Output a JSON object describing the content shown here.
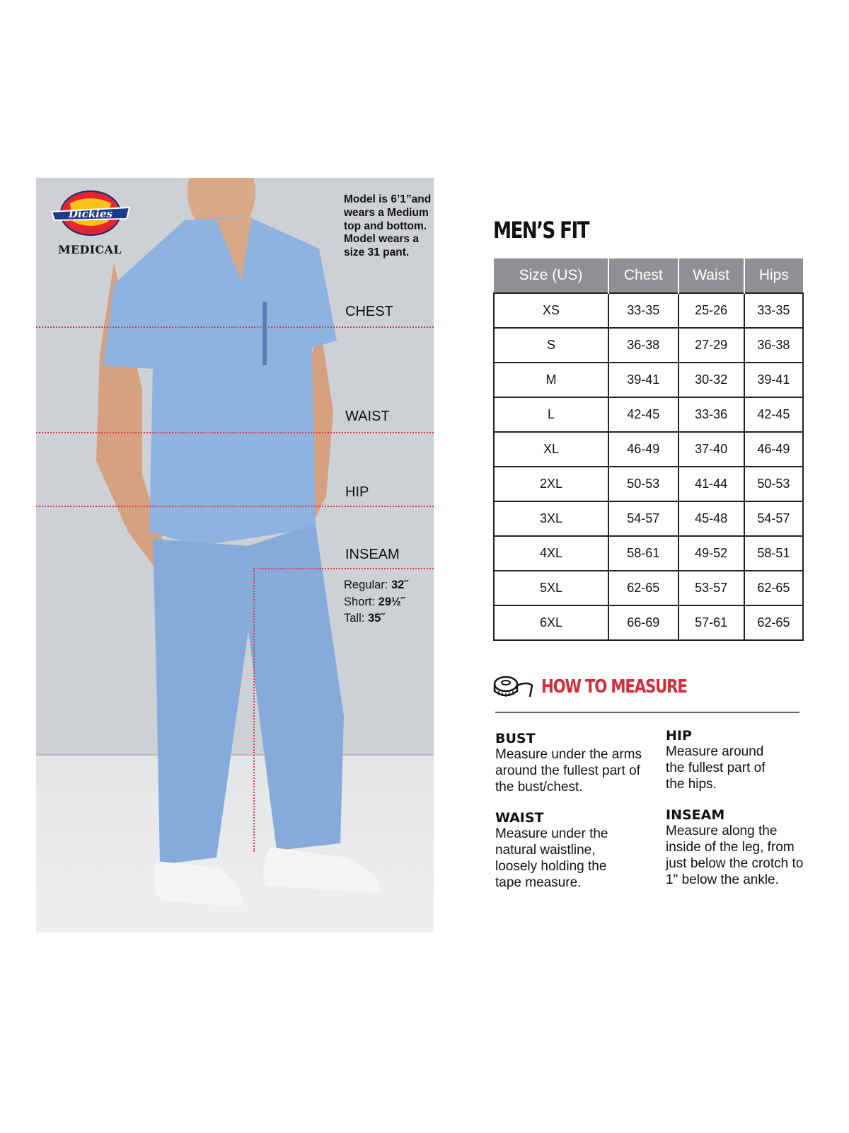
{
  "photo": {
    "brand_logo_text": "Dickies",
    "brand_sub": "MEDICAL",
    "model_note": "Model is 6’1”and wears a Medium top and bottom. Model wears a size 31 pant.",
    "labels": {
      "chest": "CHEST",
      "waist": "WAIST",
      "hip": "HIP",
      "inseam": "INSEAM"
    },
    "inseam_values": [
      {
        "label": "Regular:",
        "value": "32˝"
      },
      {
        "label": "Short:",
        "value": "29½˝"
      },
      {
        "label": "Tall:",
        "value": "35˝"
      }
    ]
  },
  "chart": {
    "title": "MEN’S FIT",
    "headers": [
      "Size (US)",
      "Chest",
      "Waist",
      "Hips"
    ],
    "rows": [
      [
        "XS",
        "33-35",
        "25-26",
        "33-35"
      ],
      [
        "S",
        "36-38",
        "27-29",
        "36-38"
      ],
      [
        "M",
        "39-41",
        "30-32",
        "39-41"
      ],
      [
        "L",
        "42-45",
        "33-36",
        "42-45"
      ],
      [
        "XL",
        "46-49",
        "37-40",
        "46-49"
      ],
      [
        "2XL",
        "50-53",
        "41-44",
        "50-53"
      ],
      [
        "3XL",
        "54-57",
        "45-48",
        "54-57"
      ],
      [
        "4XL",
        "58-61",
        "49-52",
        "58-51"
      ],
      [
        "5XL",
        "62-65",
        "53-57",
        "62-65"
      ],
      [
        "6XL",
        "66-69",
        "57-61",
        "62-65"
      ]
    ]
  },
  "how_to_measure": {
    "icon": "tape-measure-icon",
    "title": "HOW TO MEASURE",
    "items": [
      {
        "heading": "BUST",
        "text": "Measure under the arms around the fullest part of the bust/chest."
      },
      {
        "heading": "HIP",
        "text": "Measure around the fullest part of the hips."
      },
      {
        "heading": "WAIST",
        "text": "Measure under the natural waistline, loosely holding the tape measure."
      },
      {
        "heading": "INSEAM",
        "text": "Measure along the inside of the leg, from just below the crotch to 1\" below the ankle."
      }
    ]
  },
  "colors": {
    "accent_red": "#d52b3a",
    "header_gray": "#8e9094",
    "scrub_blue": "#8fb3e0"
  }
}
